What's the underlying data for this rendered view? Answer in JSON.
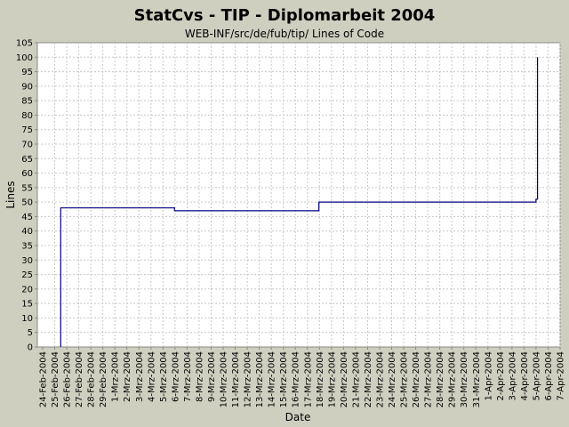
{
  "chart_data": {
    "type": "line",
    "title": "StatCvs - TIP - Diplomarbeit 2004",
    "subtitle": "WEB-INF/src/de/fub/tip/ Lines of Code",
    "xlabel": "Date",
    "ylabel": "Lines",
    "ylim": [
      0,
      105
    ],
    "yticks": [
      0,
      5,
      10,
      15,
      20,
      25,
      30,
      35,
      40,
      45,
      50,
      55,
      60,
      65,
      70,
      75,
      80,
      85,
      90,
      95,
      100,
      105
    ],
    "xlim": [
      "2004-02-24",
      "2004-04-07"
    ],
    "xtick_labels": [
      "24-Feb-2004",
      "25-Feb-2004",
      "26-Feb-2004",
      "27-Feb-2004",
      "28-Feb-2004",
      "29-Feb-2004",
      "1-Mrz-2004",
      "2-Mrz-2004",
      "3-Mrz-2004",
      "4-Mrz-2004",
      "5-Mrz-2004",
      "6-Mrz-2004",
      "7-Mrz-2004",
      "8-Mrz-2004",
      "9-Mrz-2004",
      "10-Mrz-2004",
      "11-Mrz-2004",
      "12-Mrz-2004",
      "13-Mrz-2004",
      "14-Mrz-2004",
      "15-Mrz-2004",
      "16-Mrz-2004",
      "17-Mrz-2004",
      "18-Mrz-2004",
      "19-Mrz-2004",
      "20-Mrz-2004",
      "21-Mrz-2004",
      "22-Mrz-2004",
      "23-Mrz-2004",
      "24-Mrz-2004",
      "25-Mrz-2004",
      "26-Mrz-2004",
      "27-Mrz-2004",
      "28-Mrz-2004",
      "29-Mrz-2004",
      "30-Mrz-2004",
      "31-Mrz-2004",
      "1-Apr-2004",
      "2-Apr-2004",
      "3-Apr-2004",
      "4-Apr-2004",
      "5-Apr-2004",
      "6-Apr-2004",
      "7-Apr-2004"
    ],
    "grid": true,
    "step": true,
    "series": [
      {
        "color": "#000080",
        "points": [
          {
            "x": "2004-02-25 12:00",
            "y": 0
          },
          {
            "x": "2004-02-25 12:00",
            "y": 48
          },
          {
            "x": "2004-03-05 23:00",
            "y": 48
          },
          {
            "x": "2004-03-05 23:00",
            "y": 47
          },
          {
            "x": "2004-03-17 23:00",
            "y": 47
          },
          {
            "x": "2004-03-17 23:00",
            "y": 50
          },
          {
            "x": "2004-04-05 00:00",
            "y": 50
          },
          {
            "x": "2004-04-05 00:00",
            "y": 51
          },
          {
            "x": "2004-04-05 03:00",
            "y": 51
          },
          {
            "x": "2004-04-05 03:00",
            "y": 100
          }
        ]
      }
    ],
    "colors": {
      "background": "#cfcfc0",
      "plot_background": "#ffffff",
      "line": "#000080"
    }
  }
}
